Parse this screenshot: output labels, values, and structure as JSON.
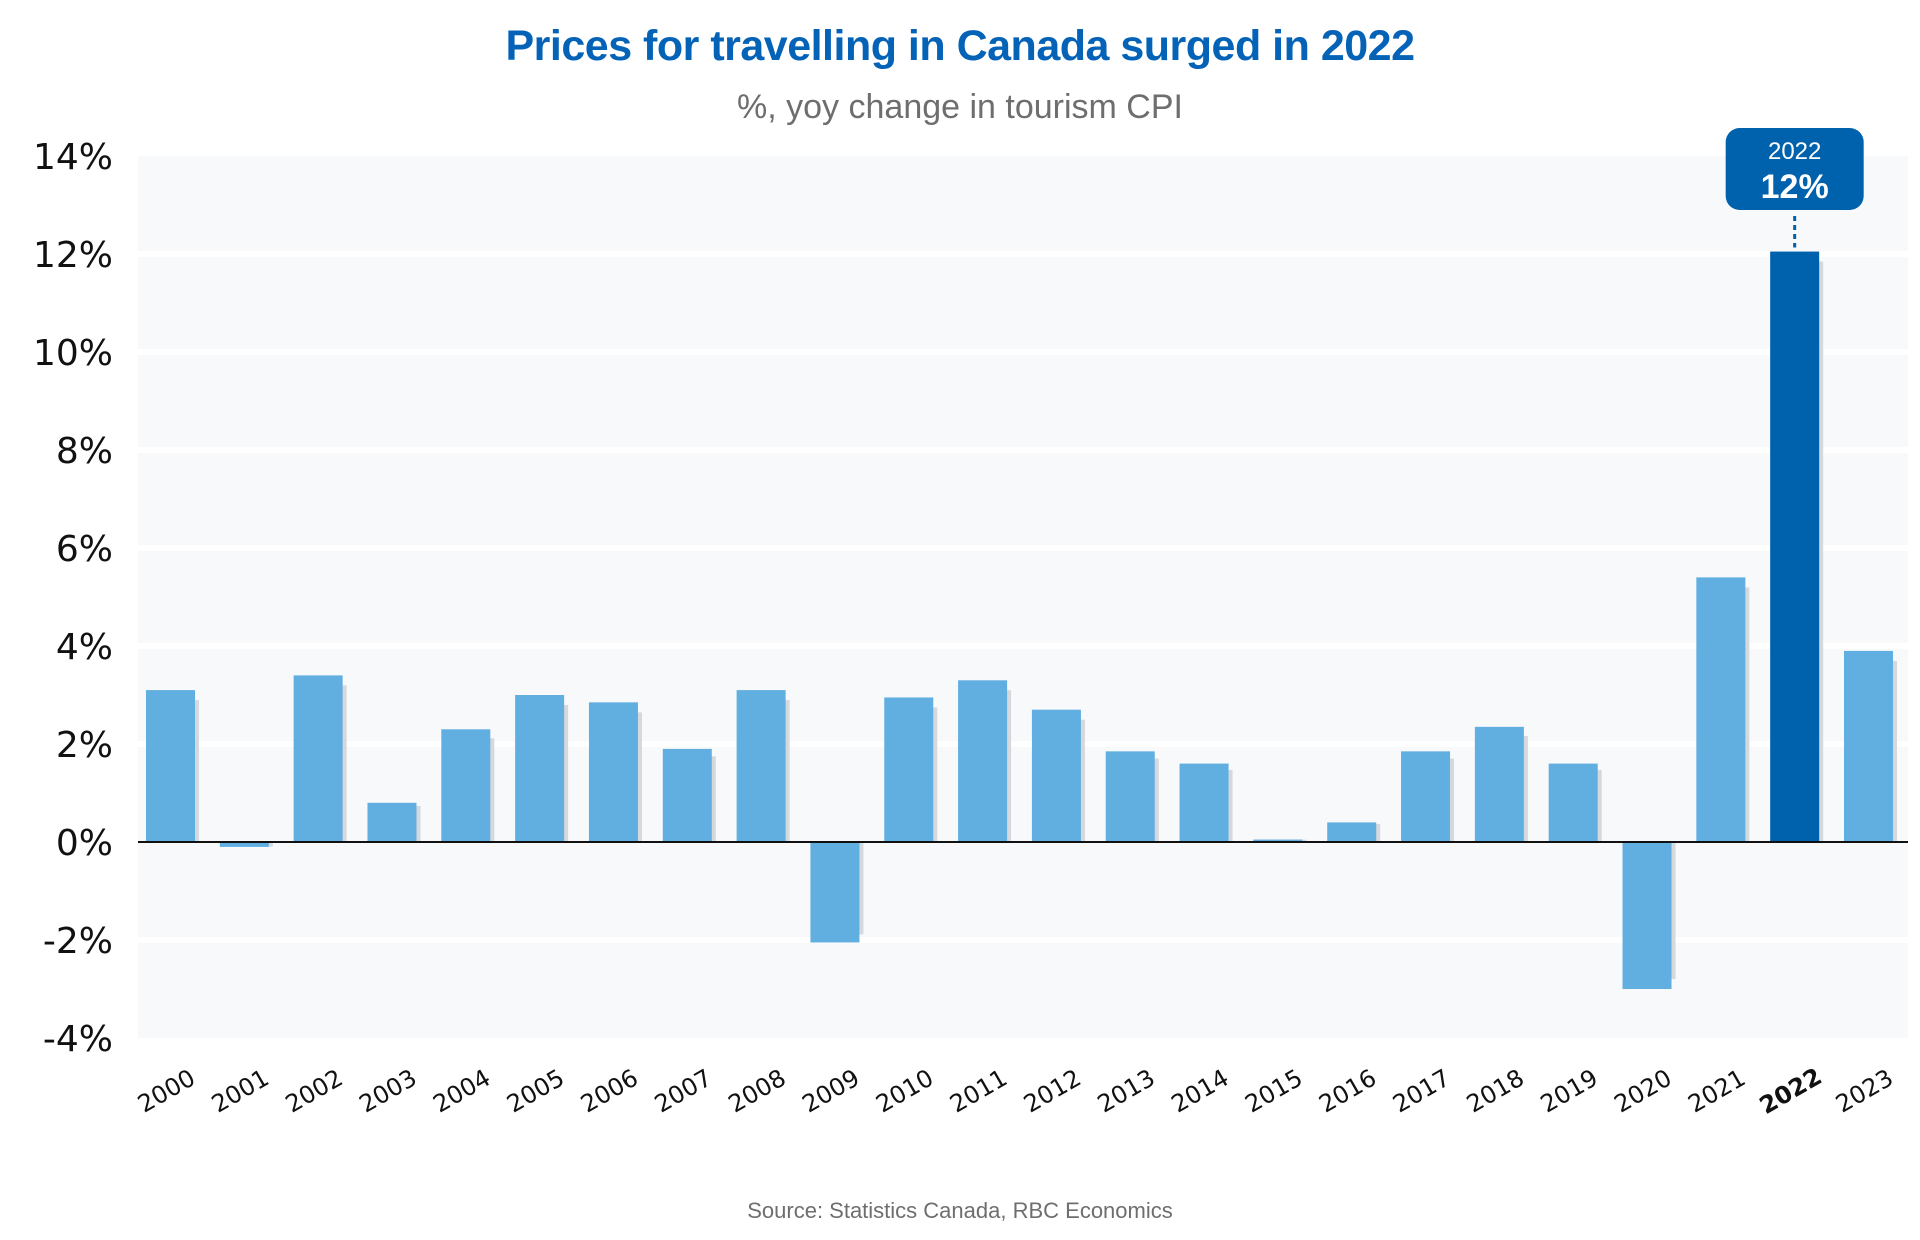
{
  "chart_data": {
    "type": "bar",
    "title": "Prices for travelling in Canada surged in 2022",
    "subtitle": "%, yoy change in tourism CPI",
    "source": "Source: Statistics Canada, RBC Economics",
    "xlabel": "",
    "ylabel": "",
    "ylim": [
      -4,
      14
    ],
    "yticks": [
      14,
      12,
      10,
      8,
      6,
      4,
      2,
      0,
      -2,
      -4
    ],
    "ytick_labels": [
      "14%",
      "12%",
      "10%",
      "8%",
      "6%",
      "4%",
      "2%",
      "0%",
      "-2%",
      "-4%"
    ],
    "grid": true,
    "legend": "none",
    "categories": [
      "2000",
      "2001",
      "2002",
      "2003",
      "2004",
      "2005",
      "2006",
      "2007",
      "2008",
      "2009",
      "2010",
      "2011",
      "2012",
      "2013",
      "2014",
      "2015",
      "2016",
      "2017",
      "2018",
      "2019",
      "2020",
      "2021",
      "2022",
      "2023"
    ],
    "values": [
      3.1,
      -0.1,
      3.4,
      0.8,
      2.3,
      3.0,
      2.85,
      1.9,
      3.1,
      -2.05,
      2.95,
      3.3,
      2.7,
      1.85,
      1.6,
      0.05,
      0.4,
      1.85,
      2.35,
      1.6,
      -3.0,
      5.4,
      12.05,
      3.9
    ],
    "highlight": {
      "category": "2022",
      "year_label": "2022",
      "value_label": "12%"
    },
    "colors": {
      "bar": "#61aee0",
      "highlight_bar": "#0061ad",
      "shadow": "#d5d8dc",
      "plot_bg": "#f7f9fb",
      "title": "#0563b7",
      "callout_bg": "#0061ad"
    }
  }
}
